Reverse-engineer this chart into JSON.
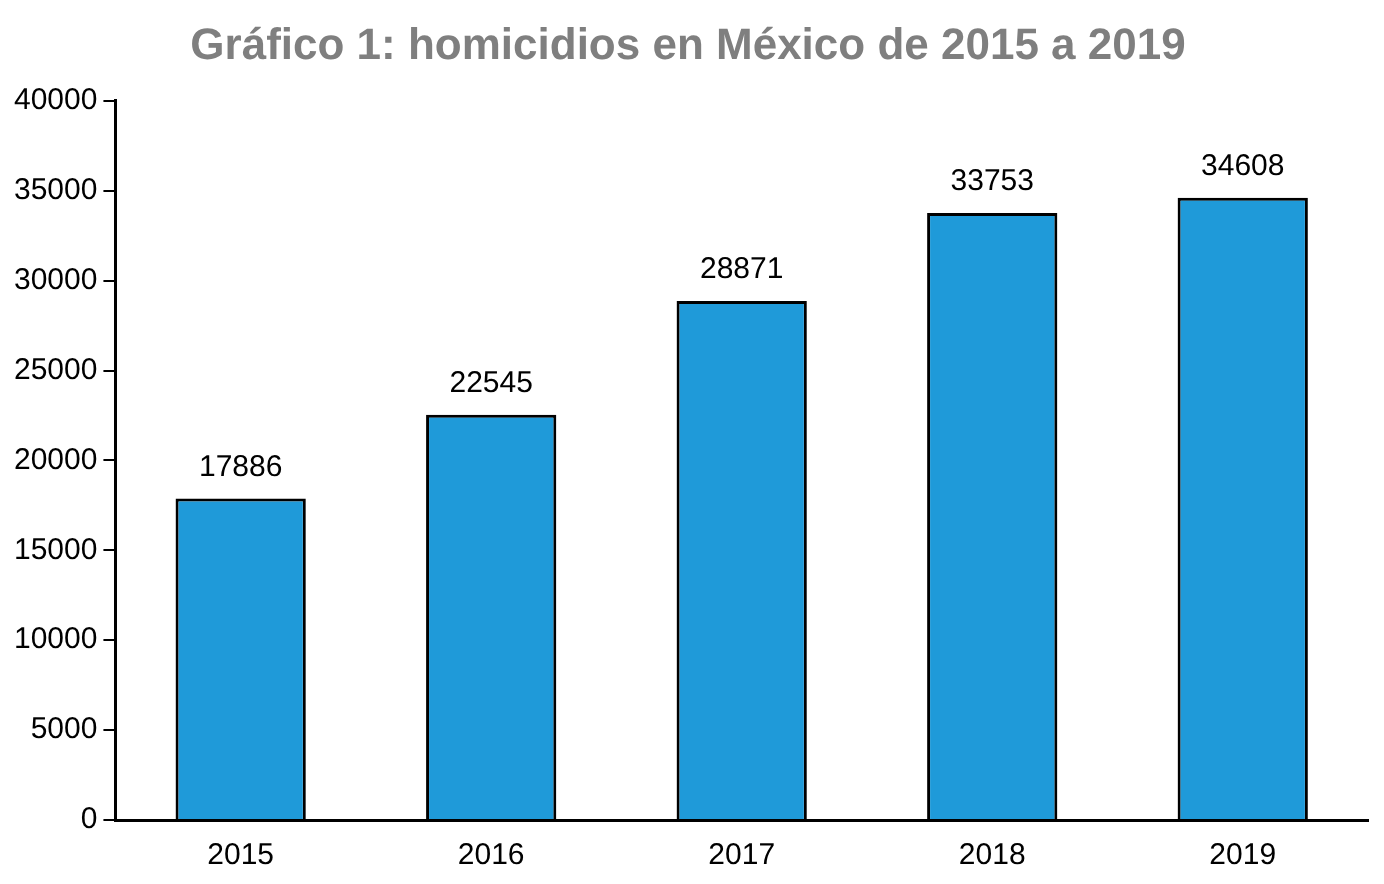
{
  "chart_data": {
    "type": "bar",
    "title": "Gráfico 1: homicidios en México de 2015 a 2019",
    "categories": [
      "2015",
      "2016",
      "2017",
      "2018",
      "2019"
    ],
    "values": [
      17886,
      22545,
      28871,
      33753,
      34608
    ],
    "color": "#1f9ad9",
    "ylim": [
      0,
      40000
    ],
    "yticks": [
      0,
      5000,
      10000,
      15000,
      20000,
      25000,
      30000,
      35000,
      40000
    ],
    "grid": false,
    "legend": false,
    "data_labels": true
  }
}
